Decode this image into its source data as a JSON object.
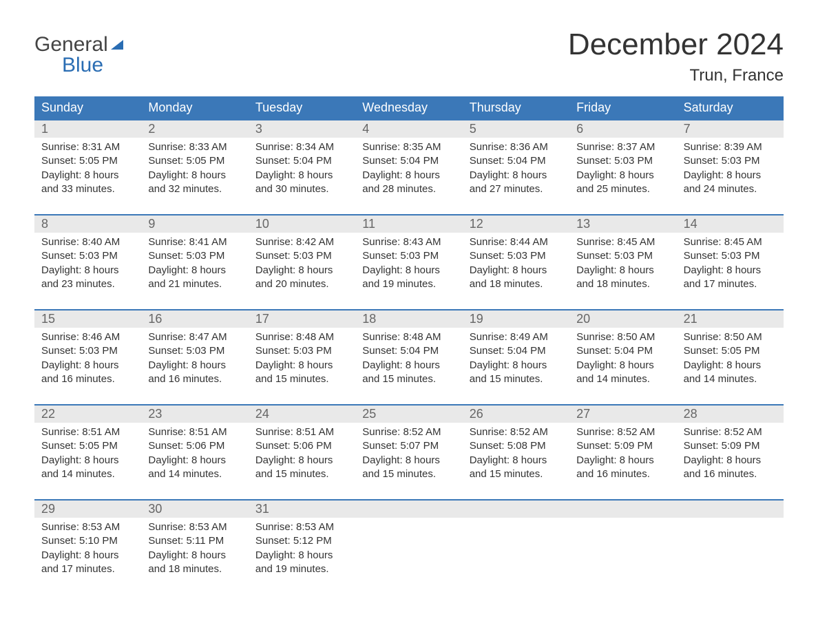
{
  "brand": {
    "line1a": "General",
    "line1b_icon": "triangle",
    "line2": "Blue"
  },
  "title": "December 2024",
  "location": "Trun, France",
  "colors": {
    "header_bg": "#3b78b8",
    "header_text": "#ffffff",
    "week_border": "#3b78b8",
    "daynum_bg": "#e9e9e9",
    "daynum_text": "#666666",
    "body_text": "#333333",
    "brand_blue": "#2a6db3",
    "page_bg": "#ffffff"
  },
  "weekdays": [
    "Sunday",
    "Monday",
    "Tuesday",
    "Wednesday",
    "Thursday",
    "Friday",
    "Saturday"
  ],
  "weeks": [
    [
      {
        "day": "1",
        "sunrise": "8:31 AM",
        "sunset": "5:05 PM",
        "daylight": "8 hours and 33 minutes."
      },
      {
        "day": "2",
        "sunrise": "8:33 AM",
        "sunset": "5:05 PM",
        "daylight": "8 hours and 32 minutes."
      },
      {
        "day": "3",
        "sunrise": "8:34 AM",
        "sunset": "5:04 PM",
        "daylight": "8 hours and 30 minutes."
      },
      {
        "day": "4",
        "sunrise": "8:35 AM",
        "sunset": "5:04 PM",
        "daylight": "8 hours and 28 minutes."
      },
      {
        "day": "5",
        "sunrise": "8:36 AM",
        "sunset": "5:04 PM",
        "daylight": "8 hours and 27 minutes."
      },
      {
        "day": "6",
        "sunrise": "8:37 AM",
        "sunset": "5:03 PM",
        "daylight": "8 hours and 25 minutes."
      },
      {
        "day": "7",
        "sunrise": "8:39 AM",
        "sunset": "5:03 PM",
        "daylight": "8 hours and 24 minutes."
      }
    ],
    [
      {
        "day": "8",
        "sunrise": "8:40 AM",
        "sunset": "5:03 PM",
        "daylight": "8 hours and 23 minutes."
      },
      {
        "day": "9",
        "sunrise": "8:41 AM",
        "sunset": "5:03 PM",
        "daylight": "8 hours and 21 minutes."
      },
      {
        "day": "10",
        "sunrise": "8:42 AM",
        "sunset": "5:03 PM",
        "daylight": "8 hours and 20 minutes."
      },
      {
        "day": "11",
        "sunrise": "8:43 AM",
        "sunset": "5:03 PM",
        "daylight": "8 hours and 19 minutes."
      },
      {
        "day": "12",
        "sunrise": "8:44 AM",
        "sunset": "5:03 PM",
        "daylight": "8 hours and 18 minutes."
      },
      {
        "day": "13",
        "sunrise": "8:45 AM",
        "sunset": "5:03 PM",
        "daylight": "8 hours and 18 minutes."
      },
      {
        "day": "14",
        "sunrise": "8:45 AM",
        "sunset": "5:03 PM",
        "daylight": "8 hours and 17 minutes."
      }
    ],
    [
      {
        "day": "15",
        "sunrise": "8:46 AM",
        "sunset": "5:03 PM",
        "daylight": "8 hours and 16 minutes."
      },
      {
        "day": "16",
        "sunrise": "8:47 AM",
        "sunset": "5:03 PM",
        "daylight": "8 hours and 16 minutes."
      },
      {
        "day": "17",
        "sunrise": "8:48 AM",
        "sunset": "5:03 PM",
        "daylight": "8 hours and 15 minutes."
      },
      {
        "day": "18",
        "sunrise": "8:48 AM",
        "sunset": "5:04 PM",
        "daylight": "8 hours and 15 minutes."
      },
      {
        "day": "19",
        "sunrise": "8:49 AM",
        "sunset": "5:04 PM",
        "daylight": "8 hours and 15 minutes."
      },
      {
        "day": "20",
        "sunrise": "8:50 AM",
        "sunset": "5:04 PM",
        "daylight": "8 hours and 14 minutes."
      },
      {
        "day": "21",
        "sunrise": "8:50 AM",
        "sunset": "5:05 PM",
        "daylight": "8 hours and 14 minutes."
      }
    ],
    [
      {
        "day": "22",
        "sunrise": "8:51 AM",
        "sunset": "5:05 PM",
        "daylight": "8 hours and 14 minutes."
      },
      {
        "day": "23",
        "sunrise": "8:51 AM",
        "sunset": "5:06 PM",
        "daylight": "8 hours and 14 minutes."
      },
      {
        "day": "24",
        "sunrise": "8:51 AM",
        "sunset": "5:06 PM",
        "daylight": "8 hours and 15 minutes."
      },
      {
        "day": "25",
        "sunrise": "8:52 AM",
        "sunset": "5:07 PM",
        "daylight": "8 hours and 15 minutes."
      },
      {
        "day": "26",
        "sunrise": "8:52 AM",
        "sunset": "5:08 PM",
        "daylight": "8 hours and 15 minutes."
      },
      {
        "day": "27",
        "sunrise": "8:52 AM",
        "sunset": "5:09 PM",
        "daylight": "8 hours and 16 minutes."
      },
      {
        "day": "28",
        "sunrise": "8:52 AM",
        "sunset": "5:09 PM",
        "daylight": "8 hours and 16 minutes."
      }
    ],
    [
      {
        "day": "29",
        "sunrise": "8:53 AM",
        "sunset": "5:10 PM",
        "daylight": "8 hours and 17 minutes."
      },
      {
        "day": "30",
        "sunrise": "8:53 AM",
        "sunset": "5:11 PM",
        "daylight": "8 hours and 18 minutes."
      },
      {
        "day": "31",
        "sunrise": "8:53 AM",
        "sunset": "5:12 PM",
        "daylight": "8 hours and 19 minutes."
      },
      null,
      null,
      null,
      null
    ]
  ],
  "labels": {
    "sunrise": "Sunrise: ",
    "sunset": "Sunset: ",
    "daylight": "Daylight: "
  }
}
